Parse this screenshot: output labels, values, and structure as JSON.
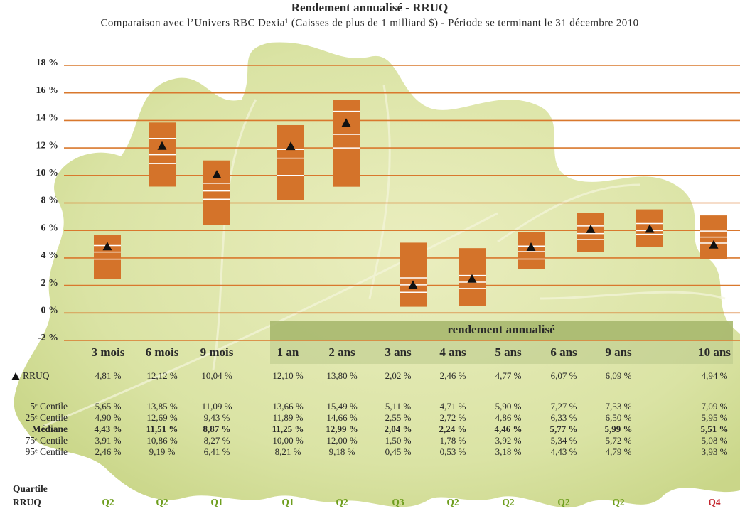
{
  "chart_data": {
    "type": "box",
    "title": "Rendement annualisé - RRUQ",
    "subtitle": "Comparaison avec l’Univers RBC Dexia¹ (Caisses de plus de 1 milliard $) - Période se terminant le 31 décembre 2010",
    "banner": "rendement annualisé",
    "categories": [
      "3 mois",
      "6 mois",
      "9 mois",
      "1 an",
      "2 ans",
      "3 ans",
      "4 ans",
      "5 ans",
      "6 ans",
      "9 ans",
      "10 ans"
    ],
    "ylim": [
      -2,
      18
    ],
    "yticks": [
      {
        "value": -2,
        "label": "-2 %"
      },
      {
        "value": 0,
        "label": "0 %"
      },
      {
        "value": 2,
        "label": "2 %"
      },
      {
        "value": 4,
        "label": "4 %"
      },
      {
        "value": 6,
        "label": "6 %"
      },
      {
        "value": 8,
        "label": "8 %"
      },
      {
        "value": 10,
        "label": "10 %"
      },
      {
        "value": 12,
        "label": "12 %"
      },
      {
        "value": 14,
        "label": "14 %"
      },
      {
        "value": 16,
        "label": "16 %"
      },
      {
        "value": 18,
        "label": "18 %"
      }
    ],
    "grid": true,
    "grid_color": "#d9782d",
    "box_color": "#d4732a",
    "marker_color": "#111111",
    "series": [
      {
        "name": "RRUQ",
        "values": [
          4.81,
          12.12,
          10.04,
          12.1,
          13.8,
          2.02,
          2.46,
          4.77,
          6.07,
          6.09,
          4.94
        ],
        "value_labels": [
          "4,81 %",
          "12,12 %",
          "10,04 %",
          "12,10 %",
          "13,80 %",
          "2,02 %",
          "2,46 %",
          "4,77 %",
          "6,07 %",
          "6,09 %",
          "4,94 %"
        ]
      },
      {
        "name": "5ᵉ Centile",
        "values": [
          5.65,
          13.85,
          11.09,
          13.66,
          15.49,
          5.11,
          4.71,
          5.9,
          7.27,
          7.53,
          7.09
        ],
        "value_labels": [
          "5,65 %",
          "13,85 %",
          "11,09 %",
          "13,66 %",
          "15,49 %",
          "5,11 %",
          "4,71 %",
          "5,90 %",
          "7,27 %",
          "7,53 %",
          "7,09 %"
        ]
      },
      {
        "name": "25ᵉ Centile",
        "values": [
          4.9,
          12.69,
          9.43,
          11.89,
          14.66,
          2.55,
          2.72,
          4.86,
          6.33,
          6.5,
          5.95
        ],
        "value_labels": [
          "4,90 %",
          "12,69 %",
          "9,43 %",
          "11,89 %",
          "14,66 %",
          "2,55 %",
          "2,72 %",
          "4,86 %",
          "6,33 %",
          "6,50 %",
          "5,95 %"
        ]
      },
      {
        "name": "Médiane",
        "values": [
          4.43,
          11.51,
          8.87,
          11.25,
          12.99,
          2.04,
          2.24,
          4.46,
          5.77,
          5.99,
          5.51
        ],
        "value_labels": [
          "4,43 %",
          "11,51 %",
          "8,87 %",
          "11,25 %",
          "12,99 %",
          "2,04 %",
          "2,24 %",
          "4,46 %",
          "5,77 %",
          "5,99 %",
          "5,51 %"
        ]
      },
      {
        "name": "75ᵉ Centile",
        "values": [
          3.91,
          10.86,
          8.27,
          10.0,
          12.0,
          1.5,
          1.78,
          3.92,
          5.34,
          5.72,
          5.08
        ],
        "value_labels": [
          "3,91 %",
          "10,86 %",
          "8,27 %",
          "10,00 %",
          "12,00 %",
          "1,50 %",
          "1,78 %",
          "3,92 %",
          "5,34 %",
          "5,72 %",
          "5,08 %"
        ]
      },
      {
        "name": "95ᵉ Centile",
        "values": [
          2.46,
          9.19,
          6.41,
          8.21,
          9.18,
          0.45,
          0.53,
          3.18,
          4.43,
          4.79,
          3.93
        ],
        "value_labels": [
          "2,46 %",
          "9,19 %",
          "6,41 %",
          "8,21 %",
          "9,18 %",
          "0,45 %",
          "0,53 %",
          "3,18 %",
          "4,43 %",
          "4,79 %",
          "3,93 %"
        ]
      }
    ],
    "quartile_label": [
      "Quartile",
      "RRUQ"
    ],
    "quartiles": [
      "Q2",
      "Q2",
      "Q1",
      "Q1",
      "Q2",
      "Q3",
      "Q2",
      "Q2",
      "Q2",
      "Q2",
      "Q4"
    ],
    "quartile_colors": {
      "Q1": "#6e9e1e",
      "Q2": "#6e9e1e",
      "Q3": "#6e9e1e",
      "Q4": "#c4262e"
    }
  }
}
